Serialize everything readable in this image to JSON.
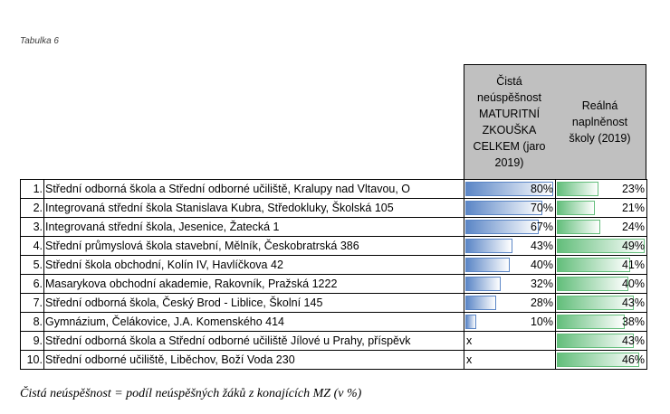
{
  "caption": "Tabulka 6",
  "headers": {
    "fail_rate": "Čistá neúspěšnost MATURITNÍ ZKOUŠKA CELKEM (jaro 2019)",
    "occupancy": "Reálná naplněnost školy (2019)"
  },
  "colors": {
    "fail_bar": "#5b86c6",
    "occupancy_bar": "#63be7b"
  },
  "rows": [
    {
      "num": "1.",
      "name": "Střední odborná škola a Střední odborné učiliště, Kralupy nad Vltavou, O",
      "fail": "80%",
      "fail_value": 80,
      "occ": "23%",
      "occ_value": 23
    },
    {
      "num": "2.",
      "name": "Integrovaná střední škola Stanislava Kubra, Středokluky, Školská 105",
      "fail": "70%",
      "fail_value": 70,
      "occ": "21%",
      "occ_value": 21
    },
    {
      "num": "3.",
      "name": "Integrovaná střední škola, Jesenice, Žatecká 1",
      "fail": "67%",
      "fail_value": 67,
      "occ": "24%",
      "occ_value": 24
    },
    {
      "num": "4.",
      "name": "Střední průmyslová škola stavební, Mělník, Českobratrská 386",
      "fail": "43%",
      "fail_value": 43,
      "occ": "49%",
      "occ_value": 49
    },
    {
      "num": "5.",
      "name": "Střední škola obchodní, Kolín IV, Havlíčkova 42",
      "fail": "40%",
      "fail_value": 40,
      "occ": "41%",
      "occ_value": 41
    },
    {
      "num": "6.",
      "name": "Masarykova obchodní akademie, Rakovník, Pražská 1222",
      "fail": "32%",
      "fail_value": 32,
      "occ": "40%",
      "occ_value": 40
    },
    {
      "num": "7.",
      "name": "Střední odborná škola, Český Brod - Liblice, Školní 145",
      "fail": "28%",
      "fail_value": 28,
      "occ": "43%",
      "occ_value": 43
    },
    {
      "num": "8.",
      "name": "Gymnázium, Čelákovice, J.A. Komenského 414",
      "fail": "10%",
      "fail_value": 10,
      "occ": "38%",
      "occ_value": 38
    },
    {
      "num": "9.",
      "name": "Střední odborná škola a Střední odborné učiliště Jílové u Prahy, příspěvk",
      "fail": "x",
      "fail_value": null,
      "occ": "43%",
      "occ_value": 43
    },
    {
      "num": "10.",
      "name": "Střední odborné učiliště, Liběchov, Boží Voda 230",
      "fail": "x",
      "fail_value": null,
      "occ": "46%",
      "occ_value": 46
    }
  ],
  "footer": "Čistá neúspěšnost = podíl neúspěšných žáků z konajících MZ (v %)"
}
